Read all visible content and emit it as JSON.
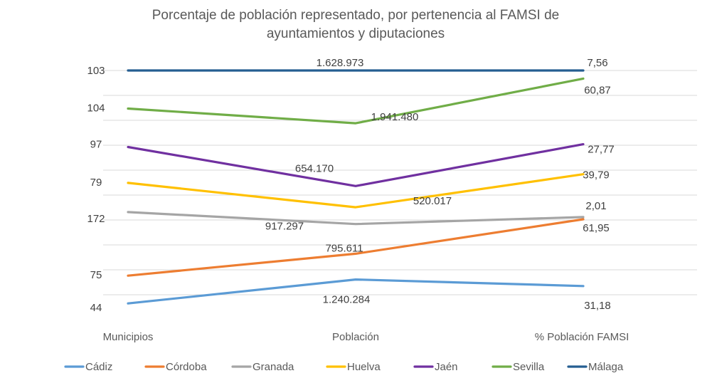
{
  "chart_data": {
    "type": "line",
    "subtype": "100% stacked line",
    "title_lines": [
      "Porcentaje de población representado, por pertenencia al FAMSI de",
      "ayuntamientos y diputaciones"
    ],
    "categories": [
      "Municipios",
      "Población",
      "% Población FAMSI"
    ],
    "xlabel": "",
    "ylabel": "",
    "grid": true,
    "legend_position": "bottom",
    "series": [
      {
        "name": "Cádiz",
        "color": "#5B9BD5",
        "values": [
          44,
          1240284,
          31.18
        ],
        "labels": [
          "44",
          "1.240.284",
          "31,18"
        ]
      },
      {
        "name": "Córdoba",
        "color": "#ED7D31",
        "values": [
          75,
          795611,
          61.95
        ],
        "labels": [
          "75",
          "795.611",
          "61,95"
        ]
      },
      {
        "name": "Granada",
        "color": "#A5A5A5",
        "values": [
          172,
          917297,
          2.01
        ],
        "labels": [
          "172",
          "917.297",
          "2,01"
        ]
      },
      {
        "name": "Huelva",
        "color": "#FFC000",
        "values": [
          79,
          520017,
          39.79
        ],
        "labels": [
          "79",
          "520.017",
          "39,79"
        ]
      },
      {
        "name": "Jaén",
        "color": "#7030A0",
        "values": [
          97,
          654170,
          27.77
        ],
        "labels": [
          "97",
          "654.170",
          "27,77"
        ]
      },
      {
        "name": "Sevilla",
        "color": "#70AD47",
        "values": [
          104,
          1941480,
          60.87
        ],
        "labels": [
          "104",
          "1.941.480",
          "60,87"
        ]
      },
      {
        "name": "Málaga",
        "color": "#255E91",
        "values": [
          103,
          1628973,
          7.56
        ],
        "labels": [
          "103",
          "1.628.973",
          "7,56"
        ]
      }
    ]
  }
}
